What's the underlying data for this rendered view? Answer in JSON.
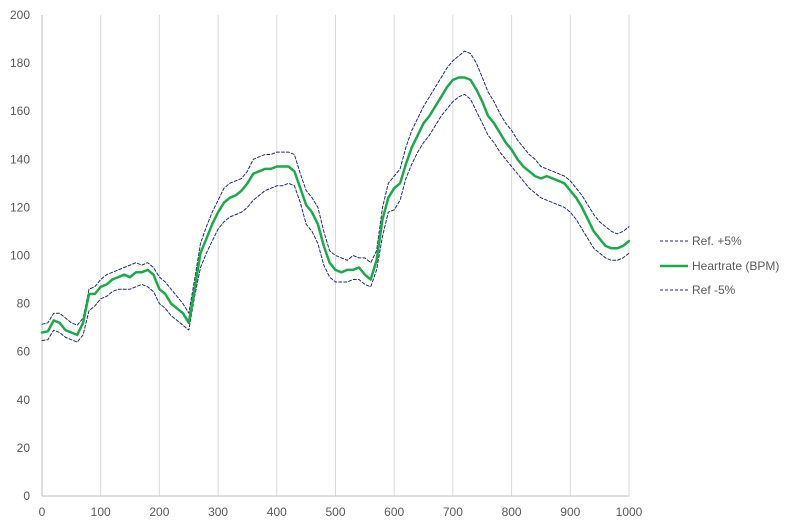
{
  "chart_data": {
    "type": "line",
    "title": "",
    "xlabel": "",
    "ylabel": "",
    "xlim": [
      0,
      1000
    ],
    "ylim": [
      0,
      200
    ],
    "x_ticks": [
      0,
      100,
      200,
      300,
      400,
      500,
      600,
      700,
      800,
      900,
      1000
    ],
    "y_ticks": [
      0,
      20,
      40,
      60,
      80,
      100,
      120,
      140,
      160,
      180,
      200
    ],
    "grid": "vertical",
    "legend_position": "right",
    "series": [
      {
        "name": "Ref. +5%",
        "color": "#1f2d6b",
        "style": "dashed",
        "x": [
          0,
          10,
          20,
          30,
          40,
          50,
          60,
          70,
          80,
          90,
          100,
          110,
          120,
          130,
          140,
          150,
          160,
          170,
          180,
          190,
          200,
          210,
          220,
          230,
          240,
          250,
          260,
          270,
          280,
          290,
          300,
          310,
          320,
          330,
          340,
          350,
          360,
          370,
          380,
          390,
          400,
          410,
          420,
          430,
          440,
          450,
          460,
          470,
          480,
          490,
          500,
          510,
          520,
          530,
          540,
          550,
          560,
          570,
          580,
          590,
          600,
          610,
          620,
          630,
          640,
          650,
          660,
          670,
          680,
          690,
          700,
          710,
          720,
          730,
          740,
          750,
          760,
          770,
          780,
          790,
          800,
          810,
          820,
          830,
          840,
          850,
          860,
          870,
          880,
          890,
          900,
          910,
          920,
          930,
          940,
          950,
          960,
          970,
          980,
          990,
          1000
        ],
        "y": [
          71.4,
          72,
          76,
          76,
          74,
          72,
          71,
          74,
          86,
          87,
          90,
          92,
          93,
          94,
          95,
          96,
          97,
          96,
          97,
          95,
          91,
          89,
          86,
          83,
          80,
          76,
          90,
          105,
          112,
          118,
          123,
          128,
          130,
          131,
          132,
          135,
          140,
          141,
          142,
          142,
          143,
          143,
          143,
          142,
          134,
          127,
          124,
          120,
          110,
          102,
          100,
          99,
          98,
          100,
          99,
          99,
          97,
          102,
          120,
          130,
          133,
          136,
          145,
          152,
          157,
          162,
          166,
          170,
          174,
          178,
          181,
          183,
          185,
          184,
          180,
          174,
          168,
          164,
          159,
          155,
          152,
          148,
          145,
          142,
          140,
          137,
          136,
          135,
          134,
          133,
          131,
          128,
          125,
          121,
          117,
          114,
          112,
          110,
          109,
          110,
          112
        ]
      },
      {
        "name": "Heartrate (BPM)",
        "color": "#1aaa4a",
        "style": "solid",
        "x": [
          0,
          10,
          20,
          30,
          40,
          50,
          60,
          70,
          80,
          90,
          100,
          110,
          120,
          130,
          140,
          150,
          160,
          170,
          180,
          190,
          200,
          210,
          220,
          230,
          240,
          250,
          260,
          270,
          280,
          290,
          300,
          310,
          320,
          330,
          340,
          350,
          360,
          370,
          380,
          390,
          400,
          410,
          420,
          430,
          440,
          450,
          460,
          470,
          480,
          490,
          500,
          510,
          520,
          530,
          540,
          550,
          560,
          570,
          580,
          590,
          600,
          610,
          620,
          630,
          640,
          650,
          660,
          670,
          680,
          690,
          700,
          710,
          720,
          730,
          740,
          750,
          760,
          770,
          780,
          790,
          800,
          810,
          820,
          830,
          840,
          850,
          860,
          870,
          880,
          890,
          900,
          910,
          920,
          930,
          940,
          950,
          960,
          970,
          980,
          990,
          1000
        ],
        "y": [
          68,
          68.5,
          73,
          72,
          69,
          68,
          67,
          72,
          84,
          84,
          87,
          88,
          90,
          91,
          92,
          91,
          93,
          93,
          94,
          92,
          86,
          84,
          80,
          78,
          76,
          72,
          86,
          101,
          107,
          113,
          118,
          122,
          124,
          125,
          127,
          130,
          134,
          135,
          136,
          136,
          137,
          137,
          137,
          135,
          128,
          121,
          118,
          113,
          104,
          97,
          94,
          93,
          94,
          94,
          95,
          92,
          90,
          98,
          115,
          124,
          128,
          130,
          138,
          145,
          150,
          155,
          158,
          162,
          166,
          170,
          173,
          174,
          174,
          173,
          169,
          164,
          158,
          155,
          151,
          147,
          144,
          140,
          137,
          135,
          133,
          132,
          133,
          132,
          131,
          130,
          127,
          124,
          120,
          115,
          110,
          107,
          104,
          103,
          103,
          104,
          106
        ]
      },
      {
        "name": "Ref -5%",
        "color": "#1f2d6b",
        "style": "dashed",
        "x": [
          0,
          10,
          20,
          30,
          40,
          50,
          60,
          70,
          80,
          90,
          100,
          110,
          120,
          130,
          140,
          150,
          160,
          170,
          180,
          190,
          200,
          210,
          220,
          230,
          240,
          250,
          260,
          270,
          280,
          290,
          300,
          310,
          320,
          330,
          340,
          350,
          360,
          370,
          380,
          390,
          400,
          410,
          420,
          430,
          440,
          450,
          460,
          470,
          480,
          490,
          500,
          510,
          520,
          530,
          540,
          550,
          560,
          570,
          580,
          590,
          600,
          610,
          620,
          630,
          640,
          650,
          660,
          670,
          680,
          690,
          700,
          710,
          720,
          730,
          740,
          750,
          760,
          770,
          780,
          790,
          800,
          810,
          820,
          830,
          840,
          850,
          860,
          870,
          880,
          890,
          900,
          910,
          920,
          930,
          940,
          950,
          960,
          970,
          980,
          990,
          1000
        ],
        "y": [
          64.6,
          65,
          69,
          68,
          66,
          65,
          64,
          67,
          77,
          79,
          82,
          83,
          85,
          86,
          86,
          86,
          87,
          88,
          87,
          85,
          80,
          78,
          75,
          73,
          71,
          69,
          83,
          95,
          101,
          106,
          111,
          114,
          116,
          117,
          118,
          120,
          123,
          125,
          127,
          128,
          129,
          129,
          130,
          129,
          122,
          113,
          110,
          105,
          96,
          91,
          89,
          89,
          89,
          90,
          90,
          88,
          87,
          94,
          108,
          118,
          119,
          123,
          132,
          138,
          143,
          147,
          150,
          154,
          158,
          161,
          164,
          166,
          167,
          165,
          160,
          155,
          150,
          147,
          143,
          140,
          137,
          134,
          131,
          128,
          126,
          124,
          123,
          122,
          121,
          120,
          118,
          115,
          111,
          107,
          103,
          101,
          99,
          98,
          98,
          99,
          101
        ]
      }
    ]
  }
}
